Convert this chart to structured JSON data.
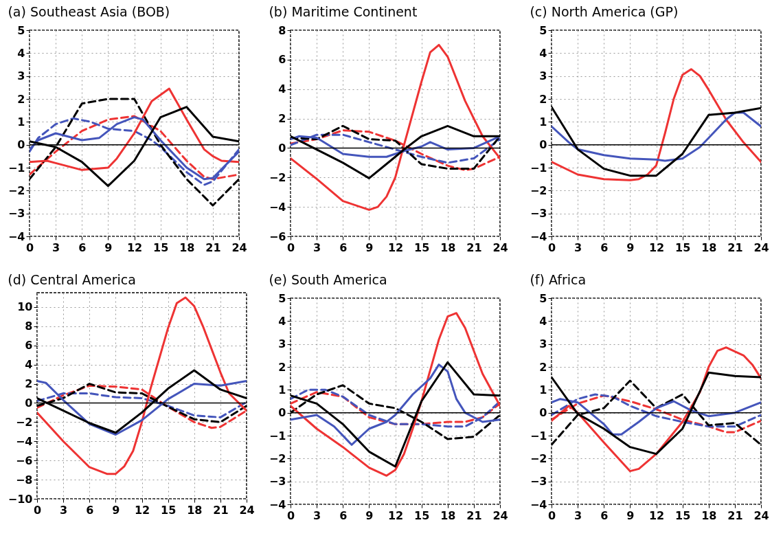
{
  "chart_data": [
    {
      "type": "line",
      "title": "(a)  Southeast Asia (BOB)",
      "xlim": [
        0,
        24
      ],
      "xticks": [
        0,
        3,
        6,
        9,
        12,
        15,
        18,
        21,
        24
      ],
      "ylim": [
        -4,
        5
      ],
      "yticks": [
        -4,
        -3,
        -2,
        -1,
        0,
        1,
        2,
        3,
        4,
        5
      ],
      "grid": true,
      "ref_lines": [
        {
          "axis": "y",
          "value": 0,
          "color": "#000000"
        }
      ],
      "series": [
        {
          "color": "#ee3333",
          "line_style": "dashed",
          "x": [
            0,
            3,
            6,
            9,
            12,
            15,
            18,
            20,
            21,
            24
          ],
          "values": [
            -1.3,
            -0.3,
            0.6,
            1.1,
            1.25,
            0.6,
            -0.7,
            -1.4,
            -1.5,
            -1.3
          ]
        },
        {
          "color": "#4455bb",
          "line_style": "dashed",
          "x": [
            0,
            1,
            3,
            5,
            7,
            9,
            12,
            14,
            15,
            18,
            20,
            21,
            24
          ],
          "values": [
            -0.3,
            0.3,
            0.9,
            1.15,
            1.0,
            0.7,
            0.6,
            0.2,
            -0.1,
            -1.2,
            -1.75,
            -1.6,
            -0.2
          ]
        },
        {
          "color": "#000000",
          "line_style": "dashed",
          "x": [
            0,
            3,
            6,
            9,
            12,
            15,
            18,
            21,
            24
          ],
          "values": [
            -1.5,
            -0.1,
            1.8,
            2.0,
            2.0,
            0,
            -1.5,
            -2.65,
            -1.5
          ]
        },
        {
          "color": "#ee3333",
          "line_style": "solid",
          "x": [
            0,
            2,
            3,
            6,
            9,
            10,
            12,
            14,
            16,
            18,
            20,
            21,
            22,
            24
          ],
          "values": [
            -0.75,
            -0.7,
            -0.8,
            -1.1,
            -1.0,
            -0.6,
            0.5,
            1.9,
            2.45,
            1.1,
            -0.2,
            -0.5,
            -0.7,
            -0.75
          ]
        },
        {
          "color": "#4455bb",
          "line_style": "solid",
          "x": [
            0,
            1,
            3,
            6,
            8,
            10,
            12,
            13,
            15,
            18,
            20,
            21,
            24
          ],
          "values": [
            -0.2,
            0.2,
            0.5,
            0.2,
            0.3,
            0.9,
            1.2,
            1.1,
            0.2,
            -1.0,
            -1.5,
            -1.45,
            -0.3
          ]
        },
        {
          "color": "#000000",
          "line_style": "solid",
          "x": [
            0,
            3,
            6,
            9,
            12,
            15,
            18,
            21,
            24
          ],
          "values": [
            0.15,
            -0.1,
            -0.75,
            -1.8,
            -0.7,
            1.2,
            1.65,
            0.35,
            0.15
          ]
        }
      ]
    },
    {
      "type": "line",
      "title": "(b)  Maritime Continent",
      "xlim": [
        0,
        24
      ],
      "xticks": [
        0,
        3,
        6,
        9,
        12,
        15,
        18,
        21,
        24
      ],
      "ylim": [
        -6,
        8
      ],
      "yticks": [
        -6,
        -4,
        -2,
        0,
        2,
        4,
        6,
        8
      ],
      "grid": true,
      "ref_lines": [
        {
          "axis": "y",
          "value": 0,
          "color": "#000000"
        }
      ],
      "series": [
        {
          "color": "#ee3333",
          "line_style": "dashed",
          "x": [
            0,
            3,
            6,
            9,
            12,
            15,
            18,
            20,
            21,
            24
          ],
          "values": [
            0.3,
            0.6,
            1.2,
            1.1,
            0.5,
            -0.4,
            -1.2,
            -1.5,
            -1.4,
            -0.6
          ]
        },
        {
          "color": "#4455bb",
          "line_style": "dashed",
          "x": [
            0,
            3,
            6,
            9,
            12,
            15,
            18,
            21,
            24
          ],
          "values": [
            0.2,
            0.9,
            0.9,
            0.4,
            -0.1,
            -0.6,
            -1.0,
            -0.7,
            0.6
          ]
        },
        {
          "color": "#000000",
          "line_style": "dashed",
          "x": [
            0,
            3,
            6,
            9,
            12,
            15,
            18,
            21,
            24
          ],
          "values": [
            0.7,
            0.6,
            1.5,
            0.6,
            0.5,
            -1.1,
            -1.4,
            -1.4,
            0.8
          ]
        },
        {
          "color": "#ee3333",
          "line_style": "solid",
          "x": [
            0,
            3,
            6,
            9,
            10,
            11,
            12,
            13,
            15,
            16,
            17,
            18,
            20,
            22,
            24
          ],
          "values": [
            -0.7,
            -2.1,
            -3.6,
            -4.2,
            -4.0,
            -3.3,
            -2.0,
            0.2,
            4.5,
            6.5,
            7.0,
            6.2,
            3.2,
            0.8,
            -0.7
          ]
        },
        {
          "color": "#4455bb",
          "line_style": "solid",
          "x": [
            0,
            1,
            3,
            6,
            9,
            11,
            13,
            15,
            16,
            18,
            21,
            24
          ],
          "values": [
            0.6,
            0.8,
            0.7,
            -0.4,
            -0.6,
            -0.6,
            -0.2,
            0.1,
            0.4,
            -0.1,
            0,
            0.8
          ]
        },
        {
          "color": "#000000",
          "line_style": "solid",
          "x": [
            0,
            3,
            6,
            9,
            12,
            13,
            15,
            18,
            21,
            24
          ],
          "values": [
            0.8,
            -0.1,
            -1.0,
            -2.05,
            -0.6,
            -0.1,
            0.8,
            1.5,
            0.8,
            0.8
          ]
        }
      ]
    },
    {
      "type": "line",
      "title": "(c)  North America (GP)",
      "xlim": [
        0,
        24
      ],
      "xticks": [
        0,
        3,
        6,
        9,
        12,
        15,
        18,
        21,
        24
      ],
      "ylim": [
        -4,
        5
      ],
      "yticks": [
        -4,
        -3,
        -2,
        -1,
        0,
        1,
        2,
        3,
        4,
        5
      ],
      "grid": true,
      "ref_lines": [
        {
          "axis": "y",
          "value": 0,
          "color": "#000000"
        }
      ],
      "series": [
        {
          "color": "#ee3333",
          "line_style": "solid",
          "x": [
            0,
            3,
            6,
            9,
            10,
            11,
            12,
            13,
            14,
            15,
            16,
            17,
            18,
            20,
            22,
            24
          ],
          "values": [
            -0.75,
            -1.3,
            -1.5,
            -1.55,
            -1.5,
            -1.3,
            -0.9,
            0.5,
            2.0,
            3.05,
            3.3,
            3.0,
            2.4,
            1.1,
            0.1,
            -0.75
          ]
        },
        {
          "color": "#4455bb",
          "line_style": "solid",
          "x": [
            0,
            2,
            3,
            6,
            9,
            12,
            13,
            15,
            17,
            18,
            20,
            21,
            22,
            24
          ],
          "values": [
            0.8,
            0.1,
            -0.2,
            -0.45,
            -0.6,
            -0.65,
            -0.7,
            -0.6,
            -0.1,
            0.3,
            1.1,
            1.4,
            1.4,
            0.8
          ]
        },
        {
          "color": "#000000",
          "line_style": "solid",
          "x": [
            0,
            3,
            6,
            9,
            12,
            15,
            18,
            21,
            24
          ],
          "values": [
            1.65,
            -0.2,
            -1.05,
            -1.35,
            -1.35,
            -0.4,
            1.3,
            1.4,
            1.6
          ]
        }
      ]
    },
    {
      "type": "line",
      "title": "(d)  Central America",
      "xlim": [
        0,
        24
      ],
      "xticks": [
        0,
        3,
        6,
        9,
        12,
        15,
        18,
        21,
        24
      ],
      "ylim": [
        -10,
        11.5
      ],
      "yticks": [
        -10,
        -8,
        -6,
        -4,
        -2,
        0,
        2,
        4,
        6,
        8,
        10
      ],
      "grid": true,
      "ref_lines": [
        {
          "axis": "y",
          "value": 0,
          "color": "#000000"
        }
      ],
      "series": [
        {
          "color": "#ee3333",
          "line_style": "dashed",
          "x": [
            0,
            3,
            6,
            9,
            12,
            15,
            18,
            20,
            21,
            24
          ],
          "values": [
            -0.5,
            0.8,
            1.8,
            1.7,
            1.4,
            -0.4,
            -2.0,
            -2.6,
            -2.5,
            -0.8
          ]
        },
        {
          "color": "#4455bb",
          "line_style": "dashed",
          "x": [
            0,
            3,
            6,
            9,
            12,
            15,
            18,
            21,
            24
          ],
          "values": [
            0.2,
            1.0,
            1.0,
            0.6,
            0.5,
            -0.3,
            -1.3,
            -1.5,
            0.1
          ]
        },
        {
          "color": "#000000",
          "line_style": "dashed",
          "x": [
            0,
            3,
            6,
            9,
            12,
            15,
            18,
            21,
            24
          ],
          "values": [
            -0.3,
            0.5,
            2.0,
            1.1,
            1.0,
            -0.4,
            -1.7,
            -2.0,
            -0.3
          ]
        },
        {
          "color": "#ee3333",
          "line_style": "solid",
          "x": [
            0,
            3,
            6,
            8,
            9,
            10,
            11,
            12,
            13,
            15,
            16,
            17,
            18,
            19,
            21,
            22,
            24
          ],
          "values": [
            -1.0,
            -4.0,
            -6.7,
            -7.4,
            -7.4,
            -6.6,
            -5.0,
            -2.0,
            1.5,
            7.8,
            10.4,
            11.0,
            10.1,
            8.0,
            3.2,
            1.0,
            -0.8
          ]
        },
        {
          "color": "#4455bb",
          "line_style": "solid",
          "x": [
            0,
            1,
            3,
            6,
            9,
            12,
            15,
            18,
            21,
            24
          ],
          "values": [
            2.3,
            2.1,
            0.3,
            -2.2,
            -3.3,
            -1.8,
            0.4,
            2.0,
            1.8,
            2.3
          ]
        },
        {
          "color": "#000000",
          "line_style": "solid",
          "x": [
            0,
            3,
            6,
            9,
            12,
            15,
            18,
            21,
            24
          ],
          "values": [
            0.5,
            -0.8,
            -2.1,
            -3.1,
            -1.0,
            1.5,
            3.4,
            1.4,
            0.5
          ]
        }
      ]
    },
    {
      "type": "line",
      "title": "(e)  South America",
      "xlim": [
        0,
        24
      ],
      "xticks": [
        0,
        3,
        6,
        9,
        12,
        15,
        18,
        21,
        24
      ],
      "ylim": [
        -4,
        5
      ],
      "yticks": [
        -4,
        -3,
        -2,
        -1,
        0,
        1,
        2,
        3,
        4,
        5
      ],
      "grid": true,
      "ref_lines": [
        {
          "axis": "y",
          "value": 0,
          "color": "#000000"
        }
      ],
      "series": [
        {
          "color": "#ee3333",
          "line_style": "dashed",
          "x": [
            0,
            3,
            6,
            9,
            12,
            15,
            18,
            20,
            22,
            24
          ],
          "values": [
            0.4,
            0.9,
            0.7,
            -0.2,
            -0.5,
            -0.5,
            -0.4,
            -0.4,
            -0.2,
            0.4
          ]
        },
        {
          "color": "#4455bb",
          "line_style": "dashed",
          "x": [
            0,
            2,
            4,
            6,
            9,
            12,
            15,
            18,
            20,
            22,
            24
          ],
          "values": [
            0.6,
            1.0,
            1.0,
            0.7,
            -0.1,
            -0.5,
            -0.5,
            -0.6,
            -0.6,
            -0.2,
            0.5
          ]
        },
        {
          "color": "#000000",
          "line_style": "dashed",
          "x": [
            0,
            3,
            6,
            9,
            12,
            15,
            18,
            21,
            24
          ],
          "values": [
            0,
            0.8,
            1.2,
            0.4,
            0.2,
            -0.4,
            -1.15,
            -1.05,
            -0.1
          ]
        },
        {
          "color": "#ee3333",
          "line_style": "solid",
          "x": [
            0,
            3,
            6,
            9,
            11,
            12,
            13,
            14,
            15,
            17,
            18,
            19,
            20,
            22,
            24
          ],
          "values": [
            0.3,
            -0.7,
            -1.5,
            -2.4,
            -2.75,
            -2.5,
            -1.8,
            -0.7,
            0.5,
            3.2,
            4.2,
            4.35,
            3.7,
            1.7,
            0.3
          ]
        },
        {
          "color": "#4455bb",
          "line_style": "solid",
          "x": [
            0,
            3,
            5,
            7,
            9,
            11,
            12,
            14,
            16,
            17,
            18,
            19,
            20,
            22,
            24
          ],
          "values": [
            -0.3,
            -0.1,
            -0.6,
            -1.4,
            -0.7,
            -0.4,
            -0.1,
            0.8,
            1.5,
            2.1,
            1.8,
            0.6,
            0,
            -0.4,
            -0.3
          ]
        },
        {
          "color": "#000000",
          "line_style": "solid",
          "x": [
            0,
            3,
            6,
            9,
            12,
            15,
            18,
            21,
            24
          ],
          "values": [
            0.75,
            0.4,
            -0.5,
            -1.7,
            -2.35,
            0.5,
            2.2,
            0.8,
            0.75
          ]
        }
      ]
    },
    {
      "type": "line",
      "title": "(f)  Africa",
      "xlim": [
        0,
        24
      ],
      "xticks": [
        0,
        3,
        6,
        9,
        12,
        15,
        18,
        21,
        24
      ],
      "ylim": [
        -4,
        5
      ],
      "yticks": [
        -4,
        -3,
        -2,
        -1,
        0,
        1,
        2,
        3,
        4,
        5
      ],
      "grid": true,
      "ref_lines": [
        {
          "axis": "y",
          "value": 0,
          "color": "#000000"
        }
      ],
      "series": [
        {
          "color": "#ee3333",
          "line_style": "dashed",
          "x": [
            0,
            3,
            6,
            9,
            12,
            15,
            18,
            20,
            21,
            24
          ],
          "values": [
            -0.3,
            0.4,
            0.75,
            0.5,
            0.15,
            -0.3,
            -0.6,
            -0.85,
            -0.85,
            -0.35
          ]
        },
        {
          "color": "#4455bb",
          "line_style": "dashed",
          "x": [
            0,
            3,
            5,
            7,
            9,
            12,
            15,
            18,
            21,
            24
          ],
          "values": [
            -0.1,
            0.6,
            0.8,
            0.7,
            0.3,
            -0.15,
            -0.4,
            -0.6,
            -0.6,
            -0.1
          ]
        },
        {
          "color": "#000000",
          "line_style": "dashed",
          "x": [
            0,
            3,
            6,
            9,
            12,
            15,
            18,
            21,
            24
          ],
          "values": [
            -1.4,
            -0.1,
            0.2,
            1.4,
            0.2,
            0.8,
            -0.55,
            -0.45,
            -1.4
          ]
        },
        {
          "color": "#ee3333",
          "line_style": "solid",
          "x": [
            0,
            2,
            3,
            6,
            9,
            10,
            12,
            15,
            17,
            18,
            19,
            20,
            22,
            23,
            24
          ],
          "values": [
            -0.35,
            0.3,
            0,
            -1.3,
            -2.55,
            -2.45,
            -1.8,
            -0.4,
            0.9,
            2.0,
            2.7,
            2.85,
            2.5,
            2.1,
            1.5
          ]
        },
        {
          "color": "#4455bb",
          "line_style": "solid",
          "x": [
            0,
            1,
            3,
            6,
            7,
            8,
            10,
            12,
            14,
            16,
            18,
            21,
            24
          ],
          "values": [
            0.45,
            0.6,
            0.45,
            -0.5,
            -0.95,
            -0.95,
            -0.4,
            0.2,
            0.5,
            0.1,
            -0.15,
            0,
            0.45
          ]
        },
        {
          "color": "#000000",
          "line_style": "solid",
          "x": [
            0,
            3,
            6,
            9,
            12,
            15,
            18,
            21,
            24
          ],
          "values": [
            1.55,
            -0.05,
            -0.7,
            -1.5,
            -1.8,
            -0.7,
            1.75,
            1.6,
            1.55
          ]
        }
      ]
    }
  ]
}
